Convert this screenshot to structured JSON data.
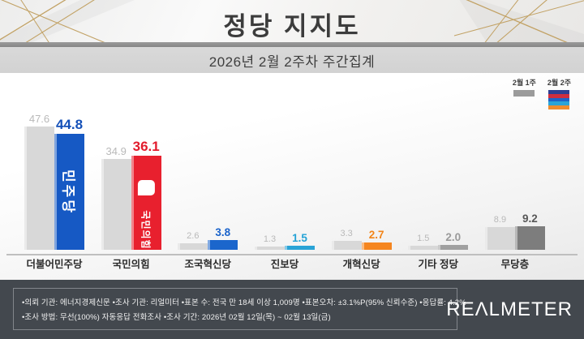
{
  "header": {
    "title": "정당 지지도",
    "subtitle": "2026년 2월 2주차 주간집계"
  },
  "legend": {
    "prev_label": "2월 1주",
    "curr_label": "2월 2주",
    "prev_color": "#9b9b9b",
    "curr_swatch_colors": [
      "#2e3f92",
      "#cf2e3e",
      "#1e63c8",
      "#2ba4d8",
      "#ef8c2e"
    ]
  },
  "chart_data": {
    "type": "bar",
    "title": "정당 지지도",
    "subtitle": "2026년 2월 2주차 주간집계",
    "categories": [
      "더불어민주당",
      "국민의힘",
      "조국혁신당",
      "진보당",
      "개혁신당",
      "기타 정당",
      "무당층"
    ],
    "series": [
      {
        "name": "2월 1주",
        "values": [
          47.6,
          34.9,
          2.6,
          1.3,
          3.3,
          1.5,
          8.9
        ]
      },
      {
        "name": "2월 2주",
        "values": [
          44.8,
          36.1,
          3.8,
          1.5,
          2.7,
          2.0,
          9.2
        ]
      }
    ],
    "prev_bar_color": "#d8d8d8",
    "current_bar_colors": [
      "#1659c4",
      "#e8202e",
      "#1b66cc",
      "#29a3d6",
      "#f5851f",
      "#a0a0a0",
      "#7d7d7d"
    ],
    "current_label_colors": [
      "#1450b8",
      "#e21b2c",
      "#1a63cb",
      "#22a2d6",
      "#f28418",
      "#9a9a9a",
      "#575757"
    ],
    "inbar_labels": [
      "민주당",
      "국민의힘",
      "",
      "",
      "",
      "",
      ""
    ],
    "ylabel": "",
    "xlabel": "",
    "ylim": [
      0,
      50
    ],
    "grid": false,
    "legend_position": "top-right",
    "unit": "%"
  },
  "footer": {
    "line1": "•의뢰 기관: 에너지경제신문  •조사 기관: 리얼미터 •표본 수: 전국 만 18세 이상 1,009명 •표본오차: ±3.1%P(95% 신뢰수준) •응답률: 4.2%",
    "line2": "•조사 방법: 무선(100%) 자동응답 전화조사 •조사 기간: 2026년 02월 12일(목) ~ 02월 13일(금)",
    "logo": "REΛLMETER"
  }
}
